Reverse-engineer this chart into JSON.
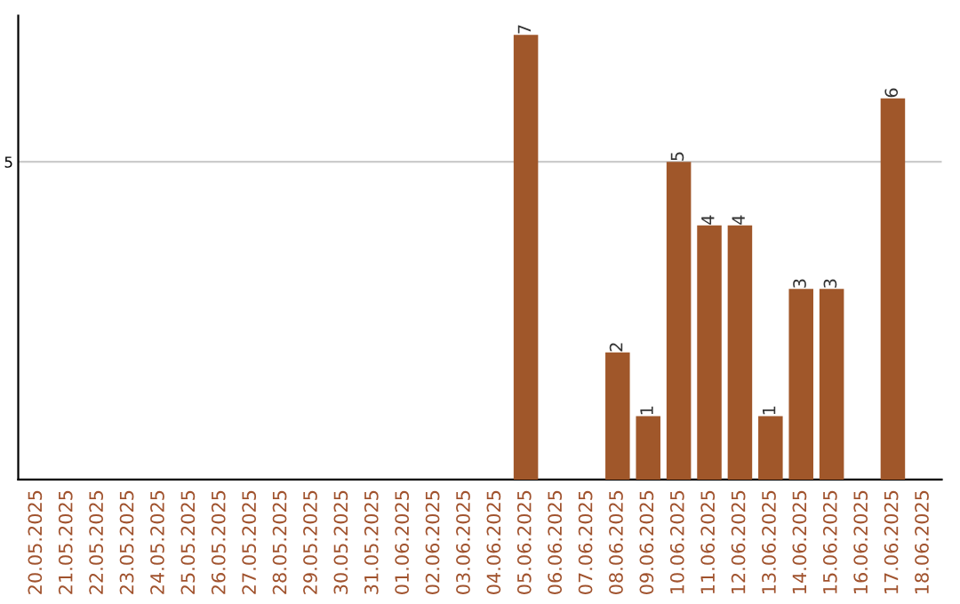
{
  "chart_data": {
    "type": "bar",
    "categories": [
      "20.05.2025",
      "21.05.2025",
      "22.05.2025",
      "23.05.2025",
      "24.05.2025",
      "25.05.2025",
      "26.05.2025",
      "27.05.2025",
      "28.05.2025",
      "29.05.2025",
      "30.05.2025",
      "31.05.2025",
      "01.06.2025",
      "02.06.2025",
      "03.06.2025",
      "04.06.2025",
      "05.06.2025",
      "06.06.2025",
      "07.06.2025",
      "08.06.2025",
      "09.06.2025",
      "10.06.2025",
      "11.06.2025",
      "12.06.2025",
      "13.06.2025",
      "14.06.2025",
      "15.06.2025",
      "16.06.2025",
      "17.06.2025",
      "18.06.2025"
    ],
    "values": [
      null,
      null,
      null,
      null,
      null,
      null,
      null,
      null,
      null,
      null,
      null,
      null,
      null,
      null,
      null,
      null,
      7,
      null,
      null,
      2,
      1,
      5,
      4,
      4,
      1,
      3,
      3,
      null,
      6,
      null
    ],
    "data_labels": true,
    "color": "#a0572a",
    "ylim": [
      0,
      7.3
    ],
    "yticks": [
      5
    ],
    "grid": "y"
  }
}
